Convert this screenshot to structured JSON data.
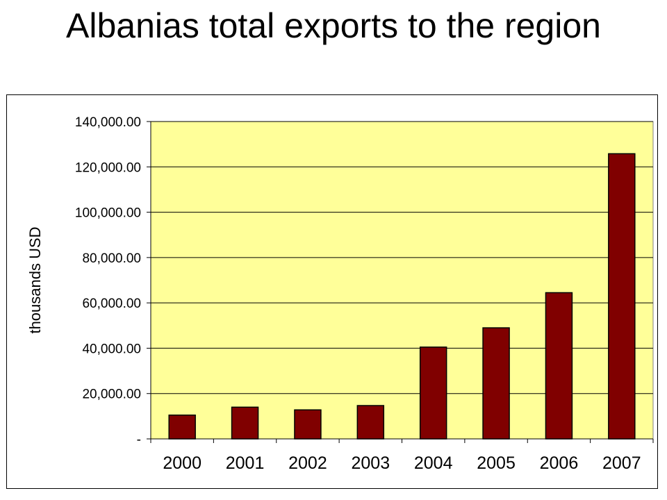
{
  "slide": {
    "title": "Albanias total exports to the region"
  },
  "colors": {
    "plot_background": "#FFFF99",
    "bar_fill": "#800000",
    "bar_stroke": "#000000",
    "gridline": "#000000"
  },
  "chart_data": {
    "type": "bar",
    "title": "",
    "xlabel": "",
    "ylabel": "thousands USD",
    "categories": [
      "2000",
      "2001",
      "2002",
      "2003",
      "2004",
      "2005",
      "2006",
      "2007"
    ],
    "values": [
      10500,
      14000,
      12800,
      14700,
      40500,
      49000,
      64500,
      125800
    ],
    "ylim": [
      0,
      140000
    ],
    "yticks": [
      0,
      20000,
      40000,
      60000,
      80000,
      100000,
      120000,
      140000
    ],
    "ytick_labels": [
      "-",
      "20,000.00",
      "40,000.00",
      "60,000.00",
      "80,000.00",
      "100,000.00",
      "120,000.00",
      "140,000.00"
    ],
    "grid": true,
    "legend": "none"
  }
}
